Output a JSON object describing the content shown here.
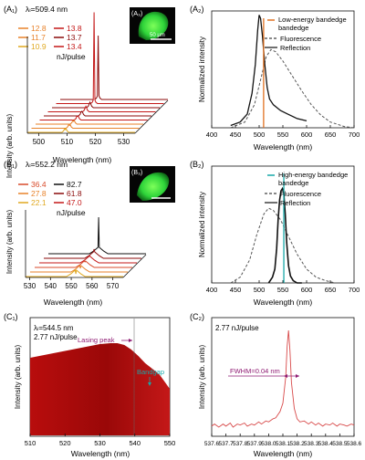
{
  "colors": {
    "red_dark": "#8b0a0a",
    "red": "#c41818",
    "red_mid": "#d84a2a",
    "orange": "#e8822a",
    "gold": "#e0a820",
    "black": "#111111",
    "teal": "#17a8a8",
    "orange_line": "#e07020",
    "purple": "#8e1a72",
    "green": "#33cc33"
  },
  "chart_data": [
    {
      "id": "A1",
      "type": "line",
      "panel_label": "(A₁)",
      "lambda_label": "λₗ=509.4 nm",
      "xlabel": "Wavelength (nm)",
      "ylabel": "Intensity (arb. units)",
      "xlim": [
        496,
        534
      ],
      "xticks": [
        500,
        510,
        520,
        530
      ],
      "legend_unit": "nJ/pulse",
      "legend_col1": [
        "12.8",
        "11.7",
        "10.9"
      ],
      "legend_col2": [
        "13.8",
        "13.7",
        "13.4"
      ],
      "legend_colors_col1": [
        "orange",
        "orange",
        "gold"
      ],
      "legend_colors_col2": [
        "red",
        "red_dark",
        "red"
      ],
      "inset_label": "(A₃)",
      "scale_bar": "50 μm",
      "peak_x": 509.4,
      "series_count": 9
    },
    {
      "id": "A2",
      "type": "line",
      "panel_label": "(A₂)",
      "xlabel": "Wavelength (nm)",
      "ylabel": "Normalized intensity",
      "xlim": [
        400,
        700
      ],
      "xticks": [
        400,
        450,
        500,
        550,
        600,
        650,
        700
      ],
      "series": [
        {
          "name": "Low-energy bandedge",
          "style": "vline",
          "x": 509.4
        },
        {
          "name": "Fluorescence",
          "style": "dashed",
          "x": [
            440,
            470,
            490,
            505,
            515,
            525,
            535,
            550,
            570,
            590,
            610,
            630,
            650,
            680,
            700
          ],
          "y": [
            0.0,
            0.05,
            0.2,
            0.45,
            0.62,
            0.68,
            0.66,
            0.58,
            0.45,
            0.32,
            0.2,
            0.11,
            0.05,
            0.01,
            0.0
          ]
        },
        {
          "name": "Reflection",
          "style": "solid",
          "x": [
            440,
            460,
            475,
            485,
            492,
            497,
            500,
            503,
            507,
            512,
            517,
            522,
            530,
            545,
            560,
            580,
            600
          ],
          "y": [
            0.02,
            0.05,
            0.12,
            0.3,
            0.55,
            0.85,
            0.98,
            0.95,
            0.8,
            0.55,
            0.35,
            0.25,
            0.2,
            0.15,
            0.12,
            0.08,
            0.06
          ]
        }
      ]
    },
    {
      "id": "B1",
      "type": "line",
      "panel_label": "(B₁)",
      "lambda_label": "λₗ=552.2 nm",
      "xlabel": "Wavelength (nm)",
      "ylabel": "Intensity (arb. units)",
      "xlim": [
        528,
        575
      ],
      "xticks": [
        530,
        540,
        550,
        560,
        570
      ],
      "legend_unit": "nJ/pulse",
      "legend_col1": [
        "36.4",
        "27.8",
        "22.1"
      ],
      "legend_col2": [
        "82.7",
        "61.8",
        "47.0"
      ],
      "legend_colors_col1": [
        "red_mid",
        "orange",
        "gold"
      ],
      "legend_colors_col2": [
        "black",
        "red_dark",
        "red"
      ],
      "inset_label": "(B₃)",
      "peak_x": 552.2,
      "series_count": 6
    },
    {
      "id": "B2",
      "type": "line",
      "panel_label": "(B₂)",
      "xlabel": "Wavelength (nm)",
      "ylabel": "Normalized intensity",
      "xlim": [
        400,
        700
      ],
      "xticks": [
        400,
        450,
        500,
        550,
        600,
        650,
        700
      ],
      "series": [
        {
          "name": "High-energy bandedge",
          "style": "vline",
          "x": 552
        },
        {
          "name": "Fluorescence",
          "style": "dashed",
          "x": [
            440,
            460,
            480,
            495,
            510,
            520,
            530,
            545,
            560,
            580,
            600,
            620,
            640,
            660
          ],
          "y": [
            0.0,
            0.05,
            0.2,
            0.42,
            0.6,
            0.65,
            0.63,
            0.55,
            0.42,
            0.25,
            0.12,
            0.05,
            0.02,
            0.0
          ]
        },
        {
          "name": "Reflection",
          "style": "solid",
          "x": [
            520,
            528,
            533,
            537,
            540,
            543,
            546,
            549,
            552,
            555,
            558,
            562,
            566,
            572,
            580,
            590
          ],
          "y": [
            0.0,
            0.05,
            0.12,
            0.3,
            0.55,
            0.72,
            0.8,
            0.82,
            0.78,
            0.6,
            0.35,
            0.15,
            0.06,
            0.02,
            0.0,
            0.0
          ]
        }
      ]
    },
    {
      "id": "C1",
      "type": "area",
      "panel_label": "(C₁)",
      "lambda_label": "λₗ=544.5 nm",
      "energy_label": "2.77 nJ/pulse",
      "xlabel": "Wavelength (nm)",
      "ylabel": "Intensity (arb. units)",
      "xlim": [
        510,
        550
      ],
      "xticks": [
        510,
        520,
        530,
        540,
        550
      ],
      "annotations": [
        "Lasing peak",
        "Bandgap"
      ]
    },
    {
      "id": "C2",
      "type": "line",
      "panel_label": "(C₂)",
      "energy_label": "2.77 nJ/pulse",
      "xlabel": "Wavelength (nm)",
      "ylabel": "Intensity (arb. units)",
      "xlim": [
        537.6,
        538.6
      ],
      "xticks": [
        "537.6",
        "537.7",
        "537.8",
        "537.9",
        "538.0",
        "538.1",
        "538.2",
        "538.3",
        "538.4",
        "538.5",
        "538.6"
      ],
      "annotation": "FWHM=0.04 nm",
      "peak_x": 538.14,
      "x": [
        537.6,
        537.62,
        537.65,
        537.68,
        537.7,
        537.73,
        537.75,
        537.78,
        537.8,
        537.83,
        537.85,
        537.88,
        537.9,
        537.93,
        537.95,
        537.98,
        538.0,
        538.03,
        538.05,
        538.08,
        538.1,
        538.12,
        538.13,
        538.14,
        538.15,
        538.16,
        538.18,
        538.2,
        538.22,
        538.25,
        538.28,
        538.3,
        538.33,
        538.35,
        538.38,
        538.4,
        538.43,
        538.45,
        538.48,
        538.5,
        538.53,
        538.55,
        538.58,
        538.6
      ],
      "y": [
        0.08,
        0.1,
        0.07,
        0.1,
        0.08,
        0.11,
        0.07,
        0.1,
        0.09,
        0.11,
        0.08,
        0.1,
        0.09,
        0.12,
        0.1,
        0.13,
        0.12,
        0.15,
        0.16,
        0.22,
        0.3,
        0.55,
        0.85,
        1.0,
        0.8,
        0.5,
        0.25,
        0.15,
        0.12,
        0.13,
        0.1,
        0.12,
        0.09,
        0.11,
        0.08,
        0.1,
        0.09,
        0.11,
        0.08,
        0.1,
        0.09,
        0.08,
        0.1,
        0.09
      ]
    }
  ]
}
